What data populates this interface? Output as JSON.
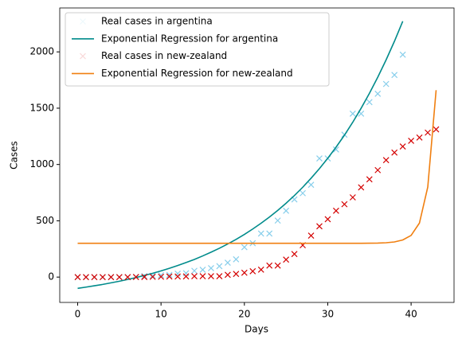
{
  "chart_data": {
    "type": "line",
    "x_label": "Days",
    "y_label": "Cases",
    "x": [
      0,
      1,
      2,
      3,
      4,
      5,
      6,
      7,
      8,
      9,
      10,
      11,
      12,
      13,
      14,
      15,
      16,
      17,
      18,
      19,
      20,
      21,
      22,
      23,
      24,
      25,
      26,
      27,
      28,
      29,
      30,
      31,
      32,
      33,
      34,
      35,
      36,
      37,
      38,
      39,
      40,
      41,
      42,
      43
    ],
    "series": [
      {
        "name": "Real cases in argentina",
        "color": "#87ceeb",
        "style": "marker",
        "values": [
          0,
          0,
          0,
          0,
          0,
          0,
          0,
          2,
          9,
          12,
          17,
          19,
          31,
          34,
          56,
          65,
          79,
          97,
          128,
          158,
          266,
          301,
          387,
          387,
          502,
          589,
          690,
          745,
          820,
          1054,
          1054,
          1133,
          1265,
          1451,
          1451,
          1554,
          1628,
          1715,
          1795,
          1975,
          null,
          null,
          null,
          null
        ]
      },
      {
        "name": "Exponential Regression for argentina",
        "color": "#008b8b",
        "style": "line",
        "values": [
          -100,
          -89,
          -77,
          -65,
          -51,
          -37,
          -21,
          -4,
          15,
          34,
          55,
          78,
          103,
          129,
          157,
          188,
          221,
          256,
          294,
          335,
          379,
          427,
          478,
          533,
          592,
          656,
          724,
          798,
          878,
          963,
          1055,
          1154,
          1260,
          1375,
          1499,
          1632,
          1775,
          1929,
          2094,
          2272,
          null,
          null,
          null,
          null
        ]
      },
      {
        "name": "Real cases in new-zealand",
        "color": "#d40000",
        "style": "marker",
        "values": [
          0,
          0,
          0,
          0,
          0,
          0,
          0,
          1,
          1,
          2,
          3,
          5,
          5,
          6,
          8,
          8,
          8,
          8,
          20,
          28,
          39,
          52,
          66,
          102,
          102,
          155,
          205,
          283,
          368,
          451,
          514,
          589,
          647,
          708,
          797,
          868,
          950,
          1039,
          1106,
          1160,
          1210,
          1239,
          1283,
          1312
        ]
      },
      {
        "name": "Exponential Regression for new-zealand",
        "color": "#f07f10",
        "style": "line",
        "values": [
          300,
          300,
          300,
          300,
          300,
          300,
          300,
          300,
          300,
          300,
          300,
          300,
          300,
          300,
          300,
          300,
          300,
          300,
          300,
          300,
          300,
          300,
          300,
          300,
          300,
          300,
          300,
          300,
          300,
          300,
          300,
          300,
          300,
          300,
          300,
          301,
          302,
          305,
          312,
          330,
          370,
          480,
          800,
          1660
        ]
      }
    ],
    "xlim": [
      -2.15,
      45.15
    ],
    "xticks": [
      0,
      10,
      20,
      30,
      40
    ],
    "ylim": [
      -225,
      2390
    ],
    "yticks": [
      0,
      500,
      1000,
      1500,
      2000
    ],
    "legend": "upper left"
  }
}
